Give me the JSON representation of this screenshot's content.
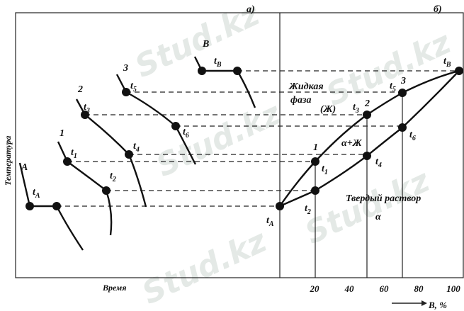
{
  "panel_labels": [
    "а)",
    "б)"
  ],
  "left": {
    "y_label": "Температура",
    "x_label": "Время",
    "labels": [
      {
        "t": "A"
      },
      {
        "t": "t",
        "sub": "A"
      },
      {
        "t": "1"
      },
      {
        "t": "t",
        "sub": "1"
      },
      {
        "t": "t",
        "sub": "2"
      },
      {
        "t": "2"
      },
      {
        "t": "t",
        "sub": "3"
      },
      {
        "t": "t",
        "sub": "4"
      },
      {
        "t": "3"
      },
      {
        "t": "t",
        "sub": "5"
      },
      {
        "t": "t",
        "sub": "6"
      },
      {
        "t": "B"
      },
      {
        "t": "t",
        "sub": "B"
      }
    ]
  },
  "right": {
    "labels": [
      {
        "t": "t",
        "sub": "B"
      },
      {
        "t": "t",
        "sub": "5"
      },
      {
        "t": "3"
      },
      {
        "t": "t",
        "sub": "3"
      },
      {
        "t": "2"
      },
      {
        "t": "Жидкая"
      },
      {
        "t": "фаза"
      },
      {
        "t": "(Ж)"
      },
      {
        "t": "1"
      },
      {
        "t": "t",
        "sub": "1"
      },
      {
        "t": "α+Ж"
      },
      {
        "t": "t",
        "sub": "4"
      },
      {
        "t": "t",
        "sub": "6"
      },
      {
        "t": "Твердый раствор"
      },
      {
        "t": "α"
      },
      {
        "t": "t",
        "sub": "A"
      },
      {
        "t": "t",
        "sub": "2"
      }
    ],
    "xticks": [
      20,
      40,
      60,
      80,
      100
    ],
    "x_label": "B, %"
  },
  "watermark": "Stud.kz"
}
